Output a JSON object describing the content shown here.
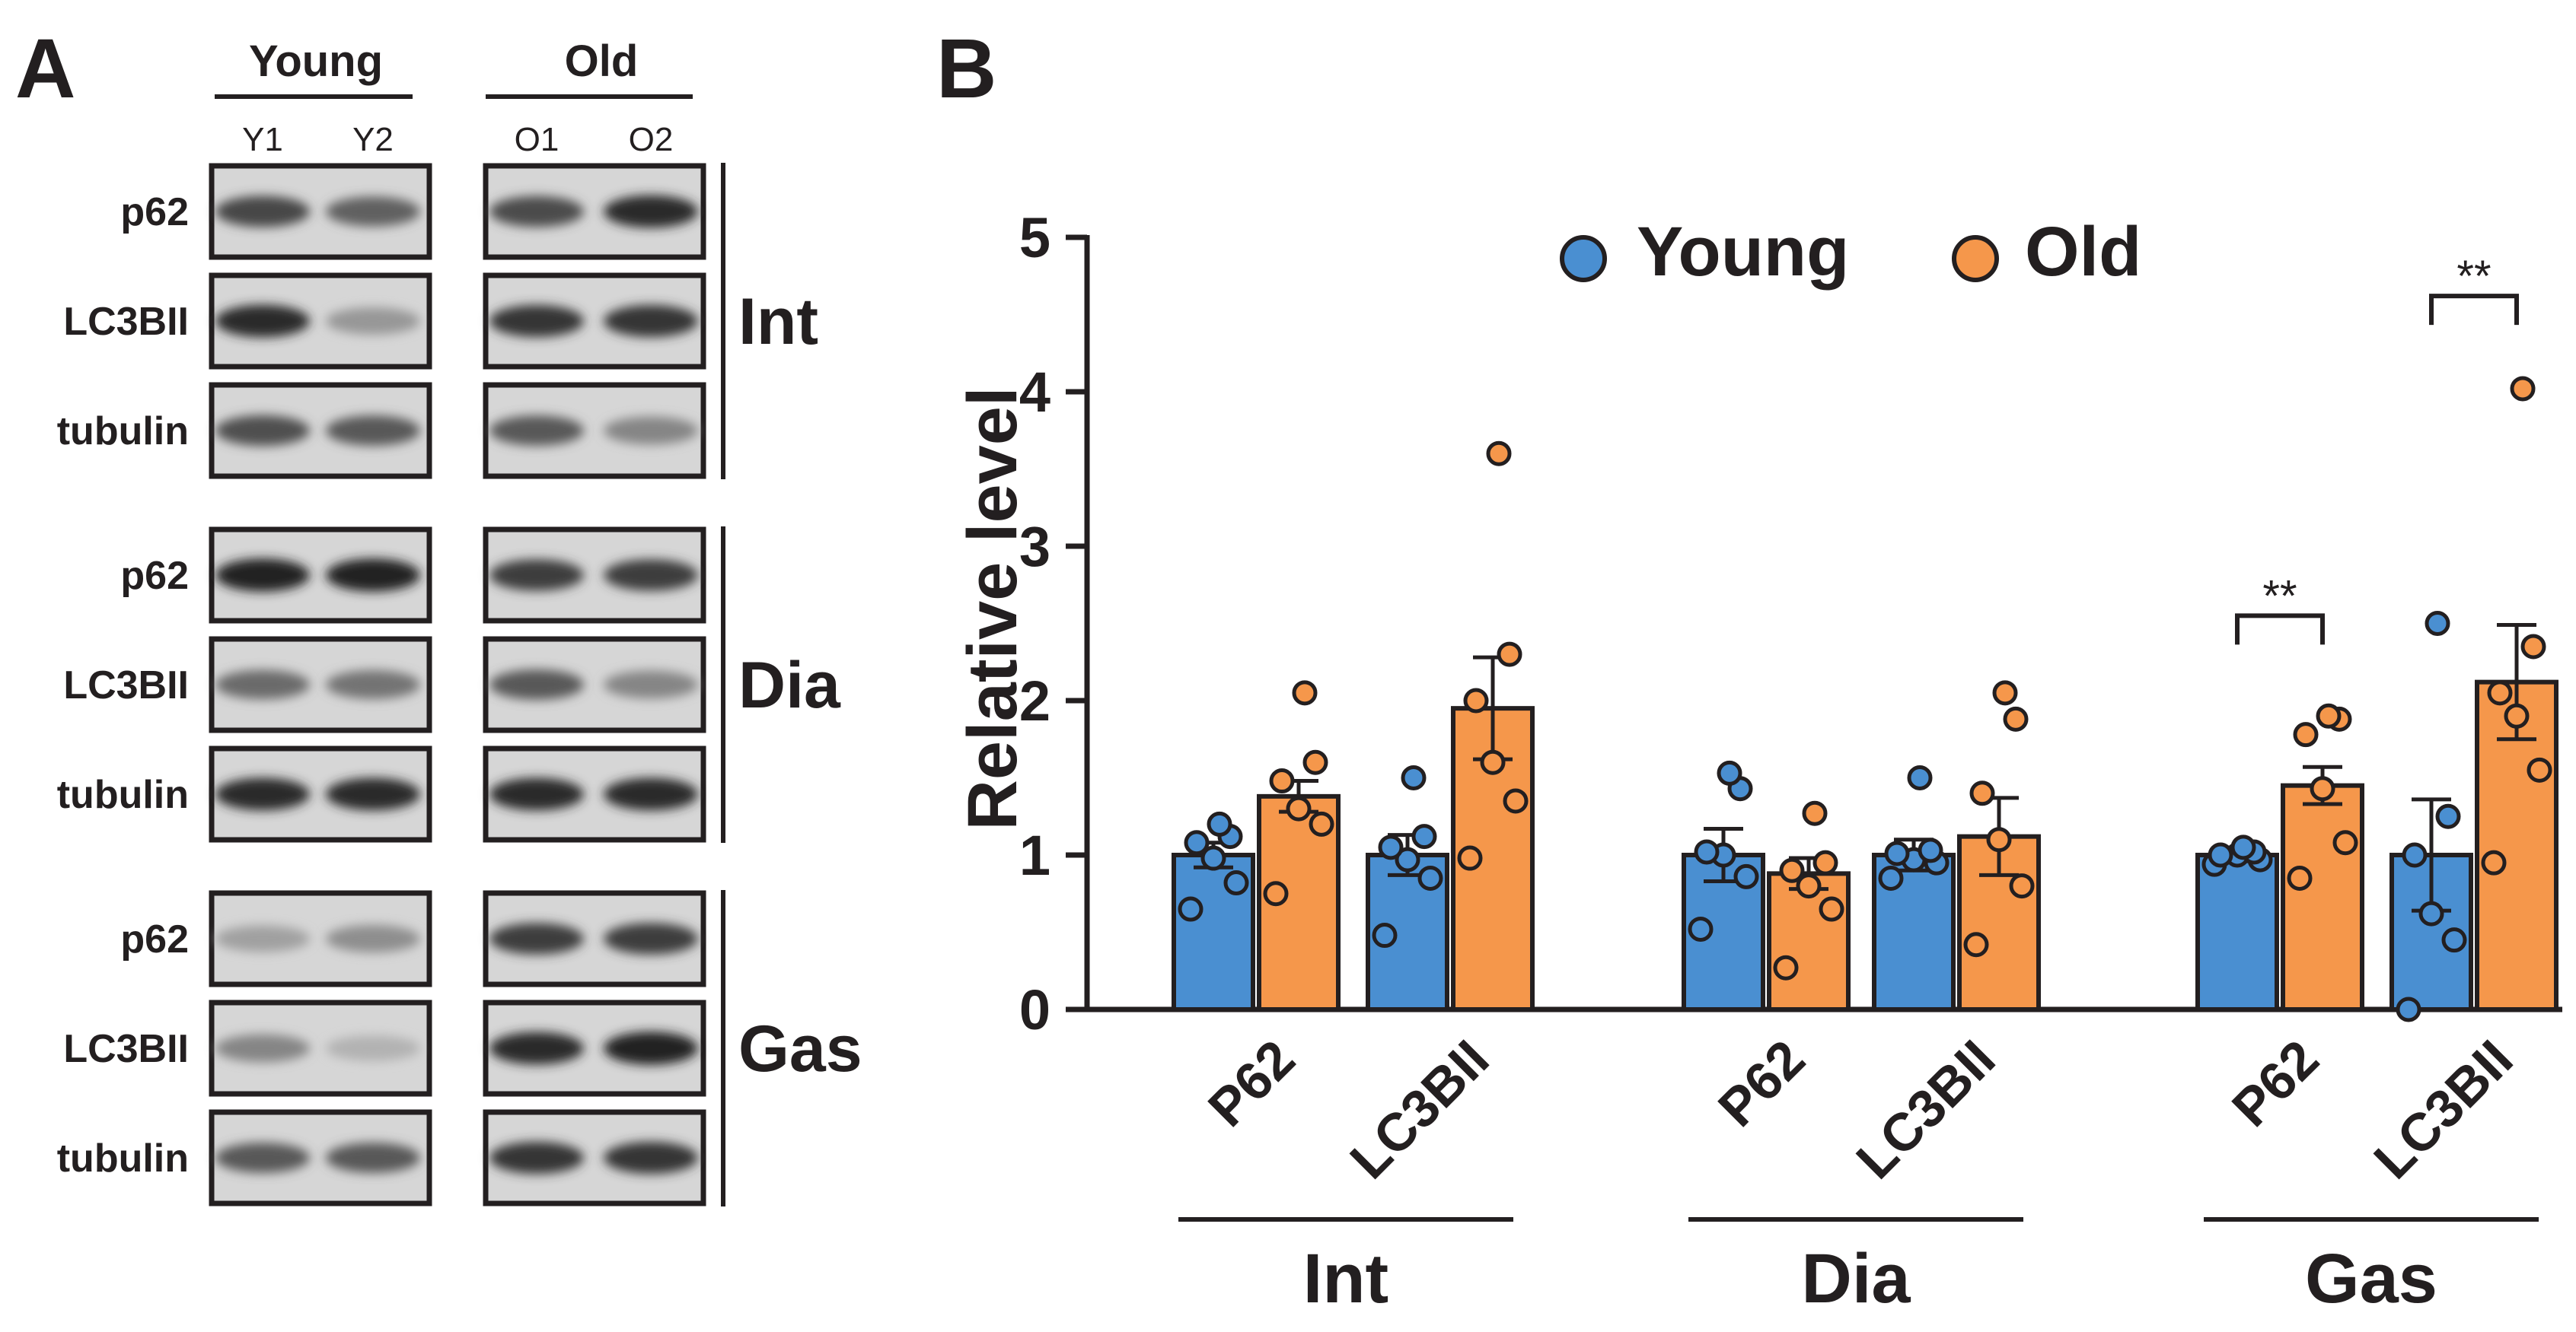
{
  "panel_a": {
    "letter": "A",
    "groups": [
      "Young",
      "Old"
    ],
    "lanes": [
      "Y1",
      "Y2",
      "O1",
      "O2"
    ],
    "blocks": [
      {
        "tissue": "Int",
        "rows": [
          {
            "label": "p62",
            "bands": [
              0.75,
              0.6,
              0.72,
              0.9
            ]
          },
          {
            "label": "LC3BII",
            "bands": [
              0.9,
              0.3,
              0.85,
              0.85
            ]
          },
          {
            "label": "tubulin",
            "bands": [
              0.7,
              0.65,
              0.65,
              0.4
            ]
          }
        ]
      },
      {
        "tissue": "Dia",
        "rows": [
          {
            "label": "p62",
            "bands": [
              0.95,
              0.95,
              0.8,
              0.8
            ]
          },
          {
            "label": "LC3BII",
            "bands": [
              0.55,
              0.5,
              0.65,
              0.4
            ]
          },
          {
            "label": "tubulin",
            "bands": [
              0.9,
              0.9,
              0.9,
              0.9
            ]
          }
        ]
      },
      {
        "tissue": "Gas",
        "rows": [
          {
            "label": "p62",
            "bands": [
              0.25,
              0.35,
              0.8,
              0.8
            ]
          },
          {
            "label": "LC3BII",
            "bands": [
              0.4,
              0.15,
              0.9,
              0.95
            ]
          },
          {
            "label": "tubulin",
            "bands": [
              0.65,
              0.65,
              0.85,
              0.85
            ]
          }
        ]
      }
    ]
  },
  "chart_data": {
    "type": "bar",
    "panel_letter": "B",
    "title": "",
    "ylabel": "Relative level",
    "ylim": [
      0,
      5
    ],
    "yticks": [
      "0",
      "1",
      "2",
      "3",
      "4",
      "5"
    ],
    "legend": [
      {
        "name": "Young",
        "color": "#4a8fd1"
      },
      {
        "name": "Old",
        "color": "#f5974b"
      }
    ],
    "legend_position": "top-center",
    "group_labels": [
      "Int",
      "Dia",
      "Gas"
    ],
    "categories": [
      "P62",
      "LC3BII",
      "P62",
      "LC3BII",
      "P62",
      "LC3BII"
    ],
    "series": [
      {
        "name": "Young",
        "color": "#4a8fd1",
        "values": [
          1.0,
          1.0,
          1.0,
          1.0,
          1.0,
          1.0
        ],
        "sem": [
          0.08,
          0.13,
          0.17,
          0.1,
          0.04,
          0.36
        ],
        "points": [
          [
            0.65,
            0.82,
            0.98,
            1.08,
            1.12,
            1.2
          ],
          [
            0.48,
            0.85,
            0.97,
            1.05,
            1.12,
            1.5
          ],
          [
            0.52,
            0.86,
            1.0,
            1.02,
            1.43,
            1.53
          ],
          [
            0.85,
            0.95,
            0.97,
            1.01,
            1.03,
            1.5
          ],
          [
            0.94,
            0.97,
            1.0,
            1.0,
            1.02,
            1.05
          ],
          [
            0.0,
            0.45,
            0.62,
            1.0,
            1.25,
            2.5
          ]
        ]
      },
      {
        "name": "Old",
        "color": "#f5974b",
        "values": [
          1.38,
          1.95,
          0.88,
          1.12,
          1.45,
          2.12
        ],
        "sem": [
          0.1,
          0.33,
          0.1,
          0.25,
          0.12,
          0.37
        ],
        "points": [
          [
            0.75,
            1.2,
            1.3,
            1.48,
            1.6,
            2.05
          ],
          [
            0.98,
            1.35,
            1.6,
            2.0,
            2.3,
            3.6
          ],
          [
            0.27,
            0.65,
            0.8,
            0.9,
            0.95,
            1.27
          ],
          [
            0.42,
            0.8,
            1.1,
            1.4,
            1.88,
            2.05
          ],
          [
            0.85,
            1.08,
            1.43,
            1.78,
            1.88,
            1.9
          ],
          [
            0.95,
            1.55,
            1.9,
            2.05,
            2.35,
            4.02
          ]
        ]
      }
    ],
    "significance": [
      {
        "category_index": 4,
        "label": "**"
      },
      {
        "category_index": 5,
        "label": "**"
      }
    ]
  }
}
